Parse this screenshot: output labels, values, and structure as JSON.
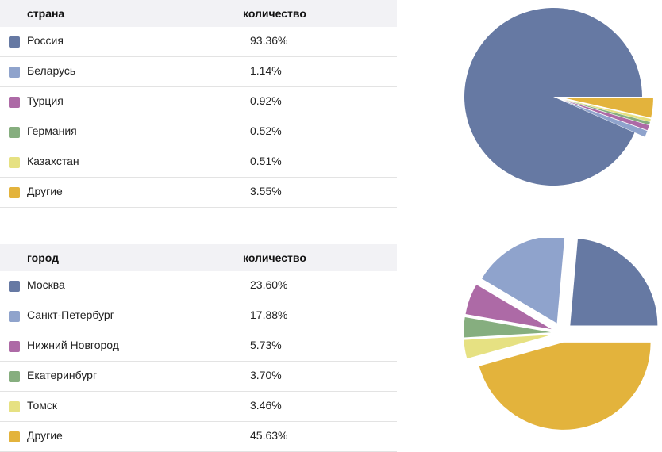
{
  "tables": [
    {
      "header": {
        "col1": "страна",
        "col2": "количество"
      },
      "rows": [
        {
          "label": "Россия",
          "value": "93.36%",
          "color": "#6679a3"
        },
        {
          "label": "Беларусь",
          "value": "1.14%",
          "color": "#8fa3cc"
        },
        {
          "label": "Турция",
          "value": "0.92%",
          "color": "#ad6aa6"
        },
        {
          "label": "Германия",
          "value": "0.52%",
          "color": "#86ae7f"
        },
        {
          "label": "Казахстан",
          "value": "0.51%",
          "color": "#e6e182"
        },
        {
          "label": "Другие",
          "value": "3.55%",
          "color": "#e3b33c"
        }
      ]
    },
    {
      "header": {
        "col1": "город",
        "col2": "количество"
      },
      "rows": [
        {
          "label": "Москва",
          "value": "23.60%",
          "color": "#6679a3"
        },
        {
          "label": "Санкт-Петербург",
          "value": "17.88%",
          "color": "#8fa3cc"
        },
        {
          "label": "Нижний Новгород",
          "value": "5.73%",
          "color": "#ad6aa6"
        },
        {
          "label": "Екатеринбург",
          "value": "3.70%",
          "color": "#86ae7f"
        },
        {
          "label": "Томск",
          "value": "3.46%",
          "color": "#e6e182"
        },
        {
          "label": "Другие",
          "value": "45.63%",
          "color": "#e3b33c"
        }
      ]
    }
  ],
  "chart_data": [
    {
      "type": "pie",
      "categories": [
        "Россия",
        "Беларусь",
        "Турция",
        "Германия",
        "Казахстан",
        "Другие"
      ],
      "values": [
        93.36,
        1.14,
        0.92,
        0.52,
        0.51,
        3.55
      ],
      "colors": [
        "#6679a3",
        "#8fa3cc",
        "#ad6aa6",
        "#86ae7f",
        "#e6e182",
        "#e3b33c"
      ]
    },
    {
      "type": "pie",
      "categories": [
        "Москва",
        "Санкт-Петербург",
        "Нижний Новгород",
        "Екатеринбург",
        "Томск",
        "Другие"
      ],
      "values": [
        23.6,
        17.88,
        5.73,
        3.7,
        3.46,
        45.63
      ],
      "colors": [
        "#6679a3",
        "#8fa3cc",
        "#ad6aa6",
        "#86ae7f",
        "#e6e182",
        "#e3b33c"
      ]
    }
  ]
}
